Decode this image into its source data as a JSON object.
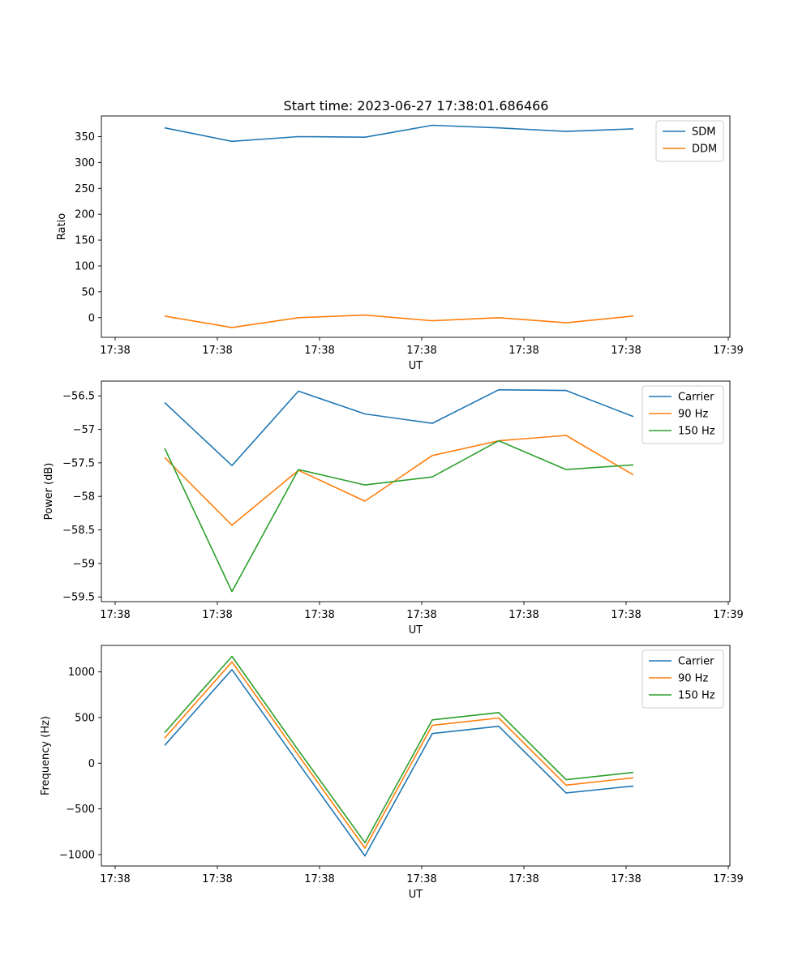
{
  "title": "Start time: 2023-06-27 17:38:01.686466",
  "chart_data": [
    {
      "type": "line",
      "xlabel": "UT",
      "ylabel": "Ratio",
      "x_tick_labels": [
        "17:38",
        "17:38",
        "17:38",
        "17:38",
        "17:38",
        "17:38",
        "17:39"
      ],
      "ylim": [
        -38,
        390
      ],
      "y_ticks": [
        0,
        50,
        100,
        150,
        200,
        250,
        300,
        350
      ],
      "legend_position": "top-right",
      "series": [
        {
          "name": "SDM",
          "color": "#1f77b4",
          "values": [
            367,
            341,
            350,
            349,
            372,
            367,
            360,
            365
          ]
        },
        {
          "name": "DDM",
          "color": "#ff7f0e",
          "values": [
            3,
            -19,
            0,
            5,
            -6,
            0,
            -10,
            3
          ]
        }
      ]
    },
    {
      "type": "line",
      "xlabel": "UT",
      "ylabel": "Power (dB)",
      "x_tick_labels": [
        "17:38",
        "17:38",
        "17:38",
        "17:38",
        "17:38",
        "17:38",
        "17:39"
      ],
      "ylim": [
        -59.57,
        -56.28
      ],
      "y_ticks": [
        -59.5,
        -59.0,
        -58.5,
        -58.0,
        -57.5,
        -57.0,
        -56.5
      ],
      "legend_position": "top-right",
      "series": [
        {
          "name": "Carrier",
          "color": "#1f77b4",
          "values": [
            -56.6,
            -57.54,
            -56.43,
            -56.77,
            -56.91,
            -56.41,
            -56.42,
            -56.81
          ]
        },
        {
          "name": "90 Hz",
          "color": "#ff7f0e",
          "values": [
            -57.42,
            -58.43,
            -57.61,
            -58.07,
            -57.39,
            -57.17,
            -57.09,
            -57.68
          ]
        },
        {
          "name": "150 Hz",
          "color": "#2ca02c",
          "values": [
            -57.28,
            -59.42,
            -57.6,
            -57.83,
            -57.71,
            -57.17,
            -57.6,
            -57.53
          ]
        }
      ]
    },
    {
      "type": "line",
      "xlabel": "UT",
      "ylabel": "Frequency (Hz)",
      "x_tick_labels": [
        "17:38",
        "17:38",
        "17:38",
        "17:38",
        "17:38",
        "17:38",
        "17:39"
      ],
      "ylim": [
        -1125,
        1290
      ],
      "y_ticks": [
        -1000,
        -500,
        0,
        500,
        1000
      ],
      "legend_position": "top-right",
      "series": [
        {
          "name": "Carrier",
          "color": "#1f77b4",
          "values": [
            195,
            1025,
            0,
            -1015,
            325,
            405,
            -325,
            -250
          ]
        },
        {
          "name": "90 Hz",
          "color": "#ff7f0e",
          "values": [
            275,
            1110,
            85,
            -930,
            415,
            495,
            -240,
            -160
          ]
        },
        {
          "name": "150 Hz",
          "color": "#2ca02c",
          "values": [
            335,
            1170,
            140,
            -870,
            475,
            555,
            -180,
            -100
          ]
        }
      ]
    }
  ]
}
